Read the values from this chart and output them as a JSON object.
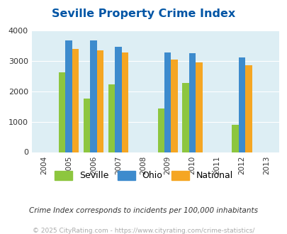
{
  "title": "Seville Property Crime Index",
  "years": [
    2004,
    2005,
    2006,
    2007,
    2008,
    2009,
    2010,
    2011,
    2012,
    2013
  ],
  "data_years": [
    2005,
    2006,
    2007,
    2009,
    2010,
    2012
  ],
  "seville": [
    2630,
    1750,
    2230,
    1430,
    2270,
    900
  ],
  "ohio": [
    3660,
    3660,
    3450,
    3280,
    3250,
    3110
  ],
  "national": [
    3400,
    3350,
    3280,
    3040,
    2950,
    2860
  ],
  "seville_color": "#8dc63f",
  "ohio_color": "#3d8bcd",
  "national_color": "#f5a623",
  "bg_color": "#ddeef4",
  "title_color": "#0055a5",
  "bar_width": 0.27,
  "ylim": [
    0,
    4000
  ],
  "yticks": [
    0,
    1000,
    2000,
    3000,
    4000
  ],
  "subtitle": "Crime Index corresponds to incidents per 100,000 inhabitants",
  "footer": "© 2025 CityRating.com - https://www.cityrating.com/crime-statistics/",
  "legend_labels": [
    "Seville",
    "Ohio",
    "National"
  ]
}
